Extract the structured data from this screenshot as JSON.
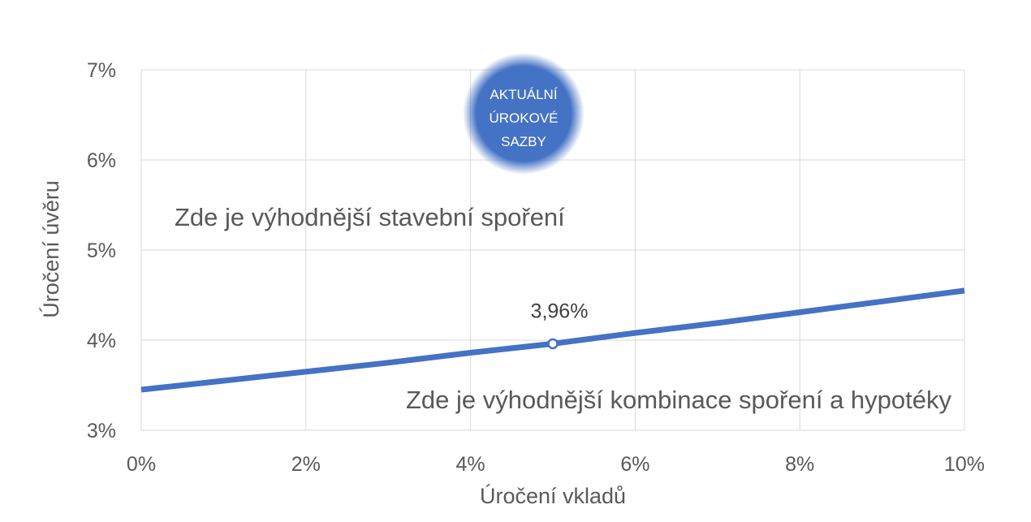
{
  "chart_data": {
    "type": "line",
    "xlabel": "Úročení vkladů",
    "ylabel": "Úročení úvěru",
    "xlim": [
      0,
      10
    ],
    "ylim": [
      3,
      7
    ],
    "x_ticks": [
      0,
      2,
      4,
      6,
      8,
      10
    ],
    "y_ticks": [
      3,
      4,
      5,
      6,
      7
    ],
    "x_tick_labels": [
      "0%",
      "2%",
      "4%",
      "6%",
      "8%",
      "10%"
    ],
    "y_tick_labels": [
      "3%",
      "4%",
      "5%",
      "6%",
      "7%"
    ],
    "grid": true,
    "legend": "none",
    "series": [
      {
        "x": [
          0,
          1,
          2,
          3,
          4,
          5,
          6,
          7,
          8,
          9,
          10
        ],
        "values": [
          3.45,
          3.55,
          3.65,
          3.75,
          3.86,
          3.96,
          4.08,
          4.19,
          4.31,
          4.43,
          4.55
        ],
        "color": "#4472C4"
      }
    ],
    "highlight": {
      "x": 5,
      "y": 3.96,
      "label": "3,96%"
    },
    "annotations": {
      "upper_region": "Zde je výhodnější stavební spoření",
      "lower_region": "Zde je výhodnější kombinace spoření a hypotéky",
      "badge_lines": [
        "AKTUÁLNÍ",
        "ÚROKOVÉ",
        "SAZBY"
      ]
    },
    "colors": {
      "line": "#4472C4",
      "badge": "#4472C4",
      "grid": "#d9d9d9",
      "text": "#595959"
    }
  }
}
